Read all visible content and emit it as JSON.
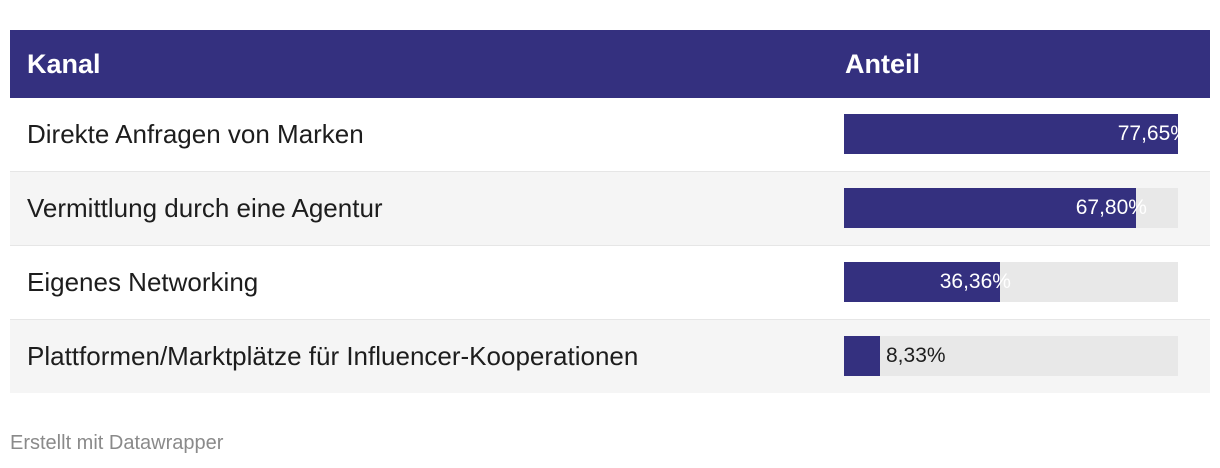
{
  "table": {
    "header": {
      "kanal": "Kanal",
      "anteil": "Anteil"
    }
  },
  "chart_data": {
    "type": "table",
    "columns": [
      "Kanal",
      "Anteil"
    ],
    "rows": [
      {
        "label": "Direkte Anfragen von Marken",
        "value": 77.65,
        "display": "77,65%"
      },
      {
        "label": "Vermittlung durch eine Agentur",
        "value": 67.8,
        "display": "67,80%"
      },
      {
        "label": "Eigenes Networking",
        "value": 36.36,
        "display": "36,36%"
      },
      {
        "label": "Plattformen/Marktplätze für Influencer-Kooperationen",
        "value": 8.33,
        "display": "8,33%"
      }
    ],
    "max": 77.65,
    "bar_color": "#34307f",
    "track_color": "#e8e8e8"
  },
  "footer": {
    "credit": "Erstellt mit Datawrapper"
  }
}
